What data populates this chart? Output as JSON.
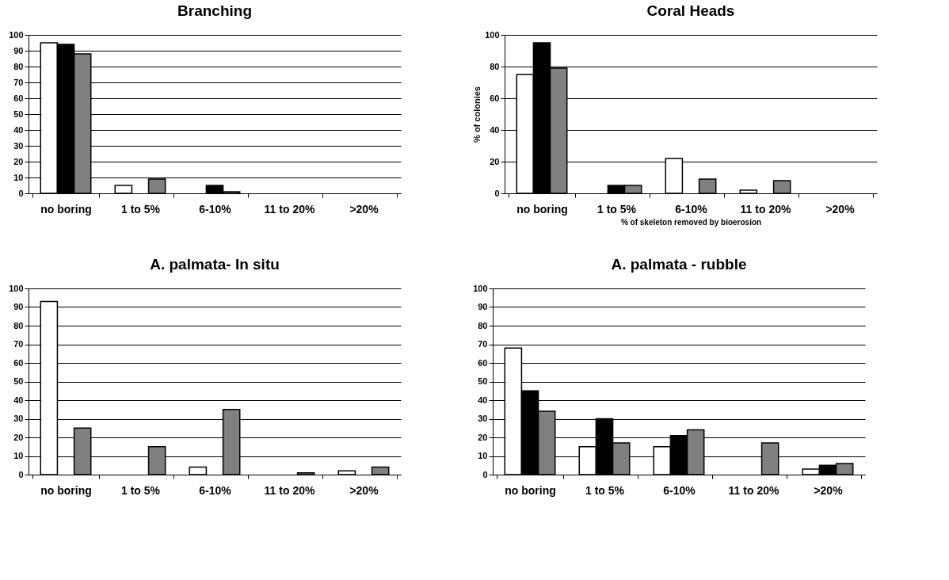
{
  "chart_data": [
    {
      "type": "bar",
      "title": "Branching",
      "categories": [
        "no boring",
        "1 to 5%",
        "6-10%",
        "11 to 20%",
        ">20%"
      ],
      "series": [
        {
          "color": "#ffffff",
          "values": [
            95,
            5,
            null,
            null,
            null
          ]
        },
        {
          "color": "#000000",
          "values": [
            94,
            null,
            5,
            null,
            null
          ]
        },
        {
          "color": "#808080",
          "values": [
            88,
            9,
            1,
            null,
            null
          ]
        }
      ],
      "ylim": [
        0,
        100
      ],
      "yticks": [
        0,
        10,
        20,
        30,
        40,
        50,
        60,
        70,
        80,
        90,
        100
      ],
      "grid": "y",
      "legend": false
    },
    {
      "type": "bar",
      "title": "Coral Heads",
      "xlabel": "% of skeleton removed by bioerosion",
      "ylabel": "% of colonies",
      "categories": [
        "no boring",
        "1 to 5%",
        "6-10%",
        "11 to 20%",
        ">20%"
      ],
      "series": [
        {
          "color": "#ffffff",
          "values": [
            75,
            null,
            22,
            2,
            null
          ]
        },
        {
          "color": "#000000",
          "values": [
            95,
            5,
            null,
            null,
            null
          ]
        },
        {
          "color": "#808080",
          "values": [
            79,
            5,
            9,
            8,
            null
          ]
        }
      ],
      "ylim": [
        0,
        100
      ],
      "yticks": [
        0,
        20,
        40,
        60,
        80,
        100
      ],
      "grid": "y",
      "legend": false
    },
    {
      "type": "bar",
      "title": "A. palmata- In situ",
      "categories": [
        "no boring",
        "1 to 5%",
        "6-10%",
        "11 to 20%",
        ">20%"
      ],
      "series": [
        {
          "color": "#ffffff",
          "values": [
            93,
            null,
            4,
            null,
            2
          ]
        },
        {
          "color": "#000000",
          "values": [
            null,
            null,
            null,
            null,
            null
          ]
        },
        {
          "color": "#808080",
          "values": [
            25,
            15,
            35,
            1,
            4
          ]
        }
      ],
      "ylim": [
        0,
        100
      ],
      "yticks": [
        0,
        10,
        20,
        30,
        40,
        50,
        60,
        70,
        80,
        90,
        100
      ],
      "grid": "y",
      "legend": false
    },
    {
      "type": "bar",
      "title": "A. palmata - rubble",
      "categories": [
        "no boring",
        "1 to 5%",
        "6-10%",
        "11 to 20%",
        ">20%"
      ],
      "series": [
        {
          "color": "#ffffff",
          "values": [
            68,
            15,
            15,
            null,
            3
          ]
        },
        {
          "color": "#000000",
          "values": [
            45,
            30,
            21,
            null,
            5
          ]
        },
        {
          "color": "#808080",
          "values": [
            34,
            17,
            24,
            17,
            6
          ]
        }
      ],
      "ylim": [
        0,
        100
      ],
      "yticks": [
        0,
        10,
        20,
        30,
        40,
        50,
        60,
        70,
        80,
        90,
        100
      ],
      "grid": "y",
      "legend": false
    }
  ]
}
